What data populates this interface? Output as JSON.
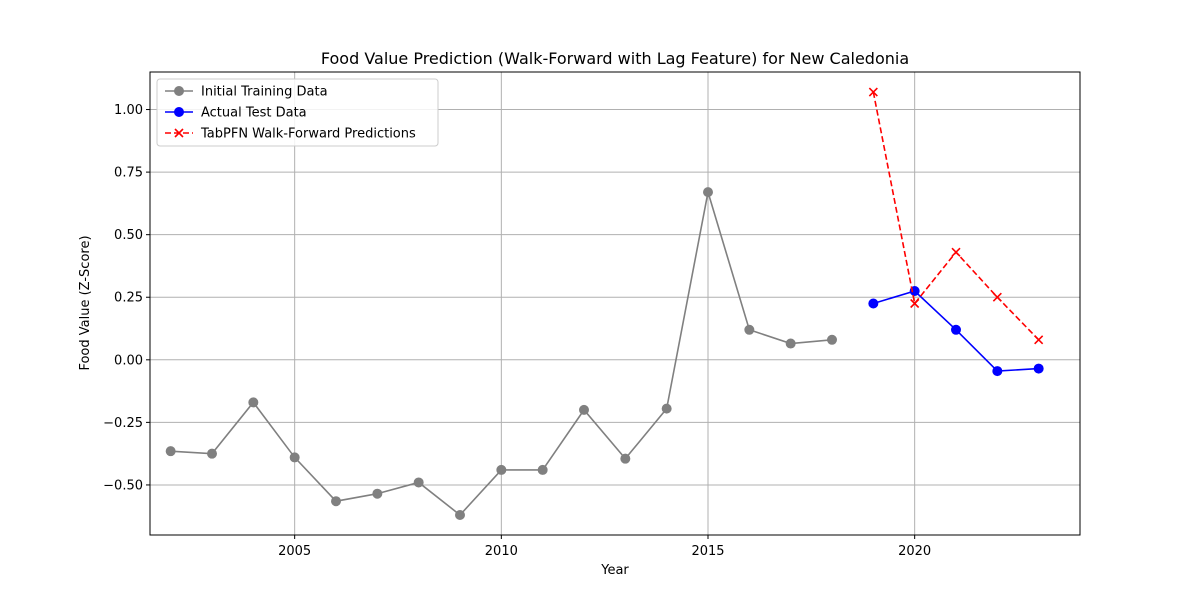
{
  "chart_data": {
    "type": "line",
    "title": "Food Value Prediction (Walk-Forward with Lag Feature) for New Caledonia",
    "xlabel": "Year",
    "ylabel": "Food Value (Z-Score)",
    "xlim": [
      2001.5,
      2024.0
    ],
    "ylim": [
      -0.7,
      1.15
    ],
    "xticks": [
      2005,
      2010,
      2015,
      2020
    ],
    "yticks": [
      -0.5,
      -0.25,
      0.0,
      0.25,
      0.5,
      0.75,
      1.0
    ],
    "ytick_labels": [
      "−0.50",
      "−0.25",
      "0.00",
      "0.25",
      "0.50",
      "0.75",
      "1.00"
    ],
    "grid": true,
    "legend_position": "top-left",
    "series": [
      {
        "name": "Initial Training Data",
        "color": "#808080",
        "marker": "circle",
        "line_style": "solid",
        "x": [
          2002,
          2003,
          2004,
          2005,
          2006,
          2007,
          2008,
          2009,
          2010,
          2011,
          2012,
          2013,
          2014,
          2015,
          2016,
          2017,
          2018
        ],
        "y": [
          -0.365,
          -0.375,
          -0.17,
          -0.39,
          -0.565,
          -0.535,
          -0.49,
          -0.62,
          -0.44,
          -0.44,
          -0.2,
          -0.395,
          -0.195,
          0.67,
          0.12,
          0.065,
          0.08
        ]
      },
      {
        "name": "Actual Test Data",
        "color": "#0000ff",
        "marker": "circle",
        "line_style": "solid",
        "x": [
          2019,
          2020,
          2021,
          2022,
          2023
        ],
        "y": [
          0.225,
          0.275,
          0.12,
          -0.045,
          -0.035
        ]
      },
      {
        "name": "TabPFN Walk-Forward Predictions",
        "color": "#ff0000",
        "marker": "x",
        "line_style": "dashed",
        "x": [
          2019,
          2020,
          2021,
          2022,
          2023
        ],
        "y": [
          1.07,
          0.225,
          0.43,
          0.25,
          0.08
        ]
      }
    ]
  }
}
